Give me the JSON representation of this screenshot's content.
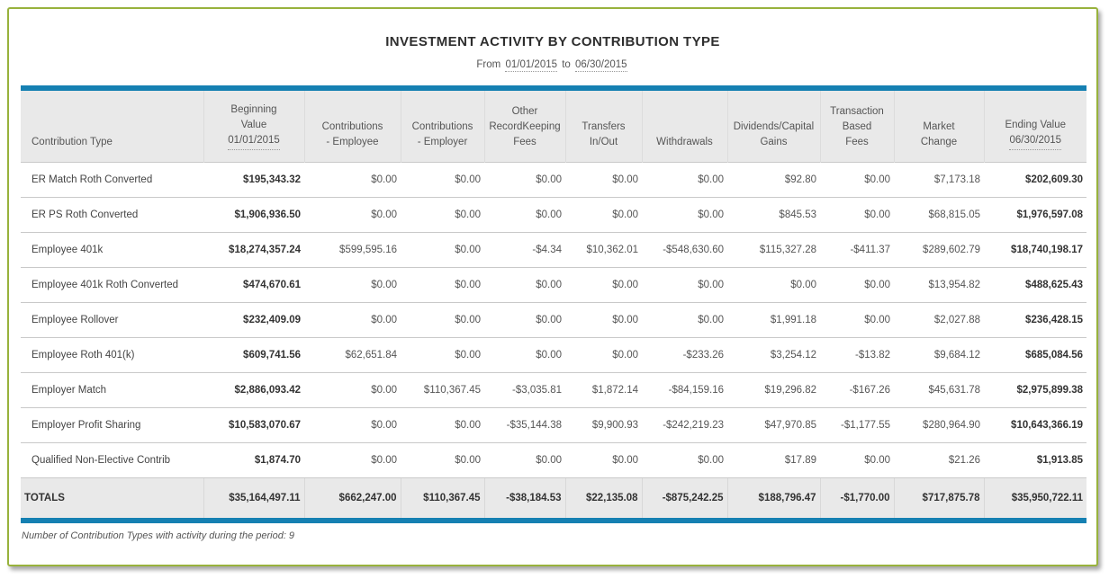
{
  "title": "INVESTMENT ACTIVITY BY CONTRIBUTION TYPE",
  "subtitle": {
    "prefix": "From",
    "start_date": "01/01/2015",
    "connector": "to",
    "end_date": "06/30/2015"
  },
  "colors": {
    "accent_blue": "#1580b2",
    "frame_green": "#98b23c",
    "header_bg": "#e9e9e9"
  },
  "table": {
    "columns": [
      {
        "label": "Contribution Type"
      },
      {
        "label": "Beginning\nValue",
        "date": "01/01/2015"
      },
      {
        "label": "Contributions\n- Employee"
      },
      {
        "label": "Contributions\n- Employer"
      },
      {
        "label": "Other\nRecordKeeping\nFees"
      },
      {
        "label": "Transfers\nIn/Out"
      },
      {
        "label": "Withdrawals"
      },
      {
        "label": "Dividends/Capital\nGains"
      },
      {
        "label": "Transaction\nBased\nFees"
      },
      {
        "label": "Market\nChange"
      },
      {
        "label": "Ending Value",
        "date": "06/30/2015"
      }
    ],
    "rows": [
      {
        "label": "ER Match Roth Converted",
        "values": [
          "$195,343.32",
          "$0.00",
          "$0.00",
          "$0.00",
          "$0.00",
          "$0.00",
          "$92.80",
          "$0.00",
          "$7,173.18",
          "$202,609.30"
        ]
      },
      {
        "label": "ER PS Roth Converted",
        "values": [
          "$1,906,936.50",
          "$0.00",
          "$0.00",
          "$0.00",
          "$0.00",
          "$0.00",
          "$845.53",
          "$0.00",
          "$68,815.05",
          "$1,976,597.08"
        ]
      },
      {
        "label": "Employee 401k",
        "values": [
          "$18,274,357.24",
          "$599,595.16",
          "$0.00",
          "-$4.34",
          "$10,362.01",
          "-$548,630.60",
          "$115,327.28",
          "-$411.37",
          "$289,602.79",
          "$18,740,198.17"
        ]
      },
      {
        "label": "Employee 401k Roth Converted",
        "values": [
          "$474,670.61",
          "$0.00",
          "$0.00",
          "$0.00",
          "$0.00",
          "$0.00",
          "$0.00",
          "$0.00",
          "$13,954.82",
          "$488,625.43"
        ]
      },
      {
        "label": "Employee Rollover",
        "values": [
          "$232,409.09",
          "$0.00",
          "$0.00",
          "$0.00",
          "$0.00",
          "$0.00",
          "$1,991.18",
          "$0.00",
          "$2,027.88",
          "$236,428.15"
        ]
      },
      {
        "label": "Employee Roth 401(k)",
        "values": [
          "$609,741.56",
          "$62,651.84",
          "$0.00",
          "$0.00",
          "$0.00",
          "-$233.26",
          "$3,254.12",
          "-$13.82",
          "$9,684.12",
          "$685,084.56"
        ]
      },
      {
        "label": "Employer Match",
        "values": [
          "$2,886,093.42",
          "$0.00",
          "$110,367.45",
          "-$3,035.81",
          "$1,872.14",
          "-$84,159.16",
          "$19,296.82",
          "-$167.26",
          "$45,631.78",
          "$2,975,899.38"
        ]
      },
      {
        "label": "Employer Profit Sharing",
        "values": [
          "$10,583,070.67",
          "$0.00",
          "$0.00",
          "-$35,144.38",
          "$9,900.93",
          "-$242,219.23",
          "$47,970.85",
          "-$1,177.55",
          "$280,964.90",
          "$10,643,366.19"
        ]
      },
      {
        "label": "Qualified Non-Elective Contrib",
        "values": [
          "$1,874.70",
          "$0.00",
          "$0.00",
          "$0.00",
          "$0.00",
          "$0.00",
          "$17.89",
          "$0.00",
          "$21.26",
          "$1,913.85"
        ]
      }
    ],
    "totals": {
      "label": "TOTALS",
      "values": [
        "$35,164,497.11",
        "$662,247.00",
        "$110,367.45",
        "-$38,184.53",
        "$22,135.08",
        "-$875,242.25",
        "$188,796.47",
        "-$1,770.00",
        "$717,875.78",
        "$35,950,722.11"
      ]
    }
  },
  "footer": "Number of Contribution Types with activity during the period: 9"
}
